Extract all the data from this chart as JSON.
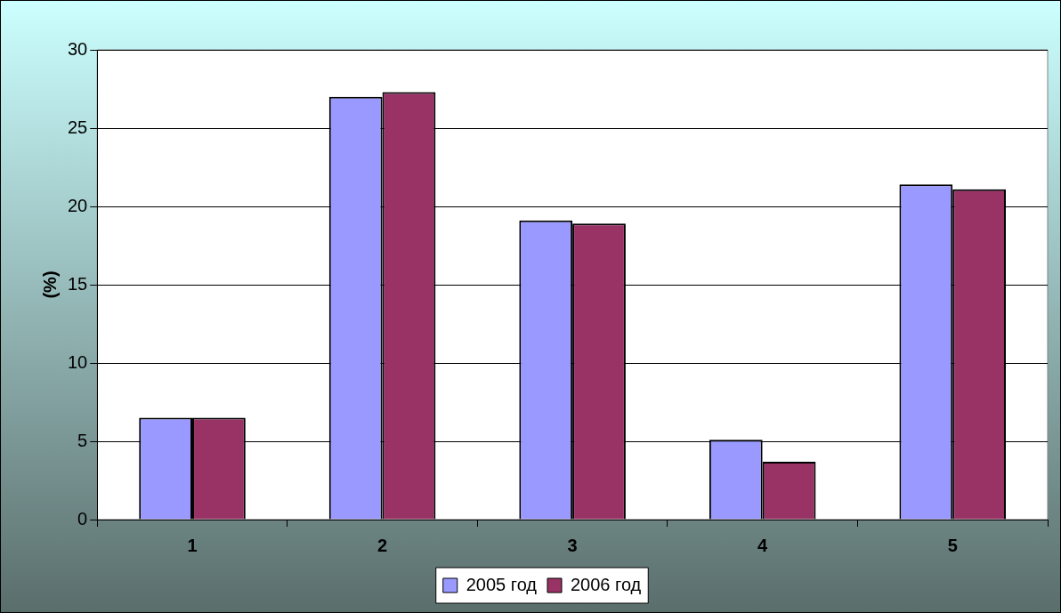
{
  "chart_data": {
    "type": "bar",
    "ylabel": "(%)",
    "categories": [
      "1",
      "2",
      "3",
      "4",
      "5"
    ],
    "series": [
      {
        "name": "2005 год",
        "color": "#9999ff",
        "values": [
          6.5,
          27.0,
          19.1,
          5.1,
          21.4
        ]
      },
      {
        "name": "2006 год",
        "color": "#993366",
        "values": [
          6.5,
          27.3,
          18.9,
          3.7,
          21.1
        ]
      }
    ],
    "ylim": [
      0,
      30
    ],
    "yticks": [
      0,
      5,
      10,
      15,
      20,
      25,
      30
    ],
    "grid": "y",
    "legend": "bottom"
  }
}
